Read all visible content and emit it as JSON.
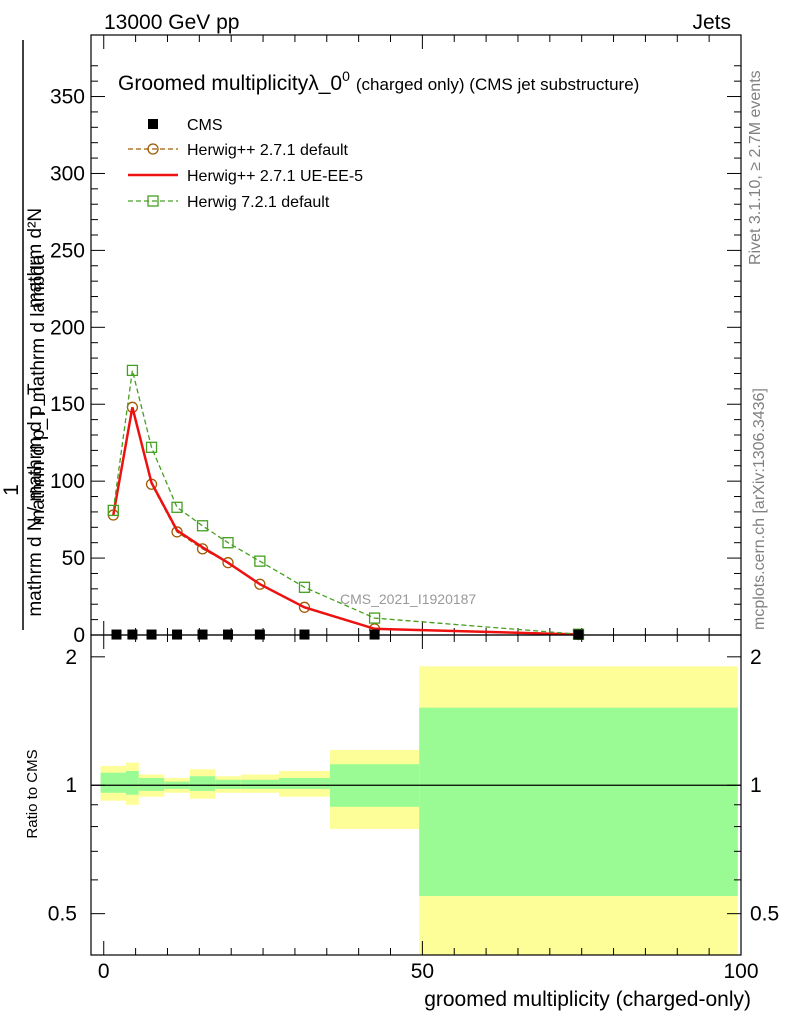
{
  "header": {
    "left": "13000 GeV pp",
    "right": "Jets"
  },
  "side_labels": {
    "rivet": "Rivet 3.1.10, ≥ 2.7M events",
    "mcplots": "mcplots.cern.ch [arXiv:1306.3436]"
  },
  "chart_data": [
    {
      "type": "line",
      "title": "Groomed multiplicityλ_0",
      "title_sup": "0",
      "title_suffix": "(charged only) (CMS jet substructure)",
      "ylabel_numerator": "mathrm d²N",
      "ylabel_numerator_line2": "mathrm d p_T mathrm d lambda",
      "ylabel_prefix": "1",
      "ylabel_denominator": "mathrm d N / mathrm d p_T",
      "yticks": [
        0,
        50,
        100,
        150,
        200,
        250,
        300,
        350
      ],
      "ylim": [
        0,
        390
      ],
      "xlim": [
        -2,
        100
      ],
      "watermark": "CMS_2021_I1920187",
      "legend_position": "top-left",
      "cms": {
        "name": "CMS",
        "x": [
          2,
          4.5,
          7.5,
          11.5,
          15.5,
          19.5,
          24.5,
          31.5,
          42.5,
          74.5
        ],
        "y": [
          0.3,
          0.3,
          0.3,
          0.3,
          0.3,
          0.3,
          0.3,
          0.3,
          0.3,
          0.3
        ]
      },
      "series": [
        {
          "name": "Herwig++ 2.7.1 default",
          "color": "#a05a00",
          "style": "dashed",
          "marker": "circle",
          "x": [
            1.5,
            4.5,
            7.5,
            11.5,
            15.5,
            19.5,
            24.5,
            31.5,
            42.5,
            74.5
          ],
          "y": [
            78,
            148,
            98,
            67,
            56,
            47,
            33,
            18,
            4,
            0.3
          ]
        },
        {
          "name": "Herwig++ 2.7.1 UE-EE-5",
          "color": "#ee1111",
          "style": "solid",
          "marker": "none",
          "x": [
            1.5,
            4.5,
            7.5,
            11.5,
            15.5,
            19.5,
            24.5,
            31.5,
            42.5,
            74.5
          ],
          "y": [
            78,
            148,
            99,
            68,
            57,
            47,
            33,
            18,
            4,
            0.3
          ]
        },
        {
          "name": "Herwig 7.2.1 default",
          "color": "#44a020",
          "style": "dashed",
          "marker": "square",
          "x": [
            1.5,
            4.5,
            7.5,
            11.5,
            15.5,
            19.5,
            24.5,
            31.5,
            42.5,
            74.5
          ],
          "y": [
            81,
            172,
            122,
            83,
            71,
            60,
            48,
            31,
            11,
            0.5
          ]
        }
      ]
    },
    {
      "type": "area",
      "ylabel": "Ratio to CMS",
      "xlabel": "groomed multiplicity (charged-only)",
      "xticks": [
        0,
        50,
        100
      ],
      "xlim": [
        -2,
        100
      ],
      "ylim": [
        0.4,
        2.25
      ],
      "yticks": [
        0.5,
        1,
        2
      ],
      "reference_line": 1,
      "bins": [
        {
          "x0": -0.5,
          "x1": 3.5,
          "inner": [
            0.96,
            1.07
          ],
          "outer": [
            0.92,
            1.11
          ]
        },
        {
          "x0": 3.5,
          "x1": 5.5,
          "inner": [
            0.95,
            1.08
          ],
          "outer": [
            0.9,
            1.13
          ]
        },
        {
          "x0": 5.5,
          "x1": 9.5,
          "inner": [
            0.97,
            1.04
          ],
          "outer": [
            0.94,
            1.06
          ]
        },
        {
          "x0": 9.5,
          "x1": 13.5,
          "inner": [
            0.98,
            1.02
          ],
          "outer": [
            0.96,
            1.04
          ]
        },
        {
          "x0": 13.5,
          "x1": 17.5,
          "inner": [
            0.97,
            1.05
          ],
          "outer": [
            0.93,
            1.09
          ]
        },
        {
          "x0": 17.5,
          "x1": 21.5,
          "inner": [
            0.98,
            1.03
          ],
          "outer": [
            0.96,
            1.05
          ]
        },
        {
          "x0": 21.5,
          "x1": 27.5,
          "inner": [
            0.98,
            1.03
          ],
          "outer": [
            0.96,
            1.06
          ]
        },
        {
          "x0": 27.5,
          "x1": 35.5,
          "inner": [
            0.98,
            1.04
          ],
          "outer": [
            0.94,
            1.08
          ]
        },
        {
          "x0": 35.5,
          "x1": 49.5,
          "inner": [
            0.89,
            1.12
          ],
          "outer": [
            0.79,
            1.21
          ]
        },
        {
          "x0": 49.5,
          "x1": 99.5,
          "inner": [
            0.55,
            1.52
          ],
          "outer": [
            0.38,
            1.9
          ]
        }
      ]
    }
  ],
  "colors": {
    "inner_band": "#9afb94",
    "outer_band": "#fefe98"
  }
}
